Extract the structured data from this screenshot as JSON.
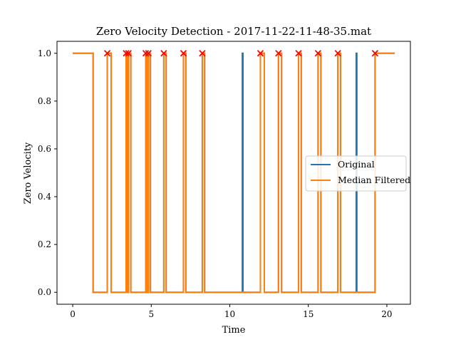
{
  "chart_data": {
    "type": "line",
    "title": "Zero Velocity Detection - 2017-11-22-11-48-35.mat",
    "xlabel": "Time",
    "ylabel": "Zero Velocity",
    "xlim": [
      -1.0,
      21.5
    ],
    "ylim": [
      -0.05,
      1.05
    ],
    "xticks": [
      0,
      5,
      10,
      15,
      20
    ],
    "yticks": [
      0.0,
      0.2,
      0.4,
      0.6,
      0.8,
      1.0
    ],
    "xtick_labels": [
      "0",
      "5",
      "10",
      "15",
      "20"
    ],
    "ytick_labels": [
      "0.0",
      "0.2",
      "0.4",
      "0.6",
      "0.8",
      "1.0"
    ],
    "grid": false,
    "legend_position": "center-right",
    "series": [
      {
        "name": "Original",
        "color": "#1f77b4",
        "x": [
          0,
          1.3,
          1.3,
          2.2,
          2.2,
          2.45,
          2.45,
          3.4,
          3.4,
          3.48,
          3.48,
          3.55,
          3.55,
          3.7,
          3.7,
          4.65,
          4.65,
          4.75,
          4.75,
          4.82,
          4.82,
          4.95,
          4.95,
          5.8,
          5.8,
          5.95,
          5.95,
          7.05,
          7.05,
          7.2,
          7.2,
          8.25,
          8.25,
          8.4,
          8.4,
          10.8,
          10.8,
          10.84,
          10.84,
          11.95,
          11.95,
          12.2,
          12.2,
          13.1,
          13.1,
          13.3,
          13.3,
          14.38,
          14.38,
          14.55,
          14.55,
          15.62,
          15.62,
          15.8,
          15.8,
          16.88,
          16.88,
          17.05,
          17.05,
          18.05,
          18.05,
          18.09,
          18.09,
          19.25,
          19.25,
          20.5
        ],
        "y": [
          1,
          1,
          0,
          0,
          1,
          1,
          0,
          0,
          1,
          1,
          0,
          0,
          1,
          1,
          0,
          0,
          1,
          1,
          0,
          0,
          1,
          1,
          0,
          0,
          1,
          1,
          0,
          0,
          1,
          1,
          0,
          0,
          1,
          1,
          0,
          0,
          1,
          1,
          0,
          0,
          1,
          1,
          0,
          0,
          1,
          1,
          0,
          0,
          1,
          1,
          0,
          0,
          1,
          1,
          0,
          0,
          1,
          1,
          0,
          0,
          1,
          1,
          0,
          0,
          1,
          1
        ]
      },
      {
        "name": "Median Filtered",
        "color": "#ff7f0e",
        "x": [
          0,
          1.3,
          1.3,
          2.2,
          2.2,
          2.45,
          2.45,
          3.4,
          3.4,
          3.48,
          3.48,
          3.55,
          3.55,
          3.7,
          3.7,
          4.65,
          4.65,
          4.75,
          4.75,
          4.82,
          4.82,
          4.95,
          4.95,
          5.8,
          5.8,
          5.95,
          5.95,
          7.05,
          7.05,
          7.2,
          7.2,
          8.25,
          8.25,
          8.4,
          8.4,
          11.95,
          11.95,
          12.2,
          12.2,
          13.1,
          13.1,
          13.3,
          13.3,
          14.38,
          14.38,
          14.55,
          14.55,
          15.62,
          15.62,
          15.8,
          15.8,
          16.88,
          16.88,
          17.05,
          17.05,
          19.25,
          19.25,
          20.5
        ],
        "y": [
          1,
          1,
          0,
          0,
          1,
          1,
          0,
          0,
          1,
          1,
          0,
          0,
          1,
          1,
          0,
          0,
          1,
          1,
          0,
          0,
          1,
          1,
          0,
          0,
          1,
          1,
          0,
          0,
          1,
          1,
          0,
          0,
          1,
          1,
          0,
          0,
          1,
          1,
          0,
          0,
          1,
          1,
          0,
          0,
          1,
          1,
          0,
          0,
          1,
          1,
          0,
          0,
          1,
          1,
          0,
          0,
          1,
          1
        ]
      }
    ],
    "markers": {
      "shape": "x",
      "color": "#ff0000",
      "x": [
        2.2,
        3.4,
        3.55,
        4.65,
        4.82,
        5.8,
        7.05,
        8.25,
        11.95,
        13.1,
        14.38,
        15.62,
        16.88,
        19.25
      ],
      "y": [
        1,
        1,
        1,
        1,
        1,
        1,
        1,
        1,
        1,
        1,
        1,
        1,
        1,
        1
      ]
    }
  }
}
